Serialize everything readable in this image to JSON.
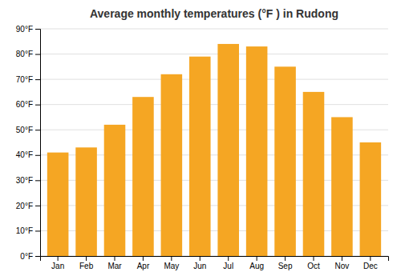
{
  "chart_data": {
    "type": "bar",
    "title": "Average monthly temperatures (°F ) in Rudong",
    "categories": [
      "Jan",
      "Feb",
      "Mar",
      "Apr",
      "May",
      "Jun",
      "Jul",
      "Aug",
      "Sep",
      "Oct",
      "Nov",
      "Dec"
    ],
    "values": [
      41,
      43,
      52,
      63,
      72,
      79,
      84,
      83,
      75,
      65,
      55,
      45
    ],
    "color": "#F5A623",
    "ylim": [
      0,
      90
    ],
    "yticks": [
      {
        "value": 0,
        "label": "0°F"
      },
      {
        "value": 10,
        "label": "10°F"
      },
      {
        "value": 20,
        "label": "20°F"
      },
      {
        "value": 30,
        "label": "30°F"
      },
      {
        "value": 40,
        "label": "40°F"
      },
      {
        "value": 50,
        "label": "50°F"
      },
      {
        "value": 60,
        "label": "60°F"
      },
      {
        "value": 70,
        "label": "70°F"
      },
      {
        "value": 80,
        "label": "80°F"
      },
      {
        "value": 90,
        "label": "90°F"
      }
    ],
    "grid": true
  }
}
